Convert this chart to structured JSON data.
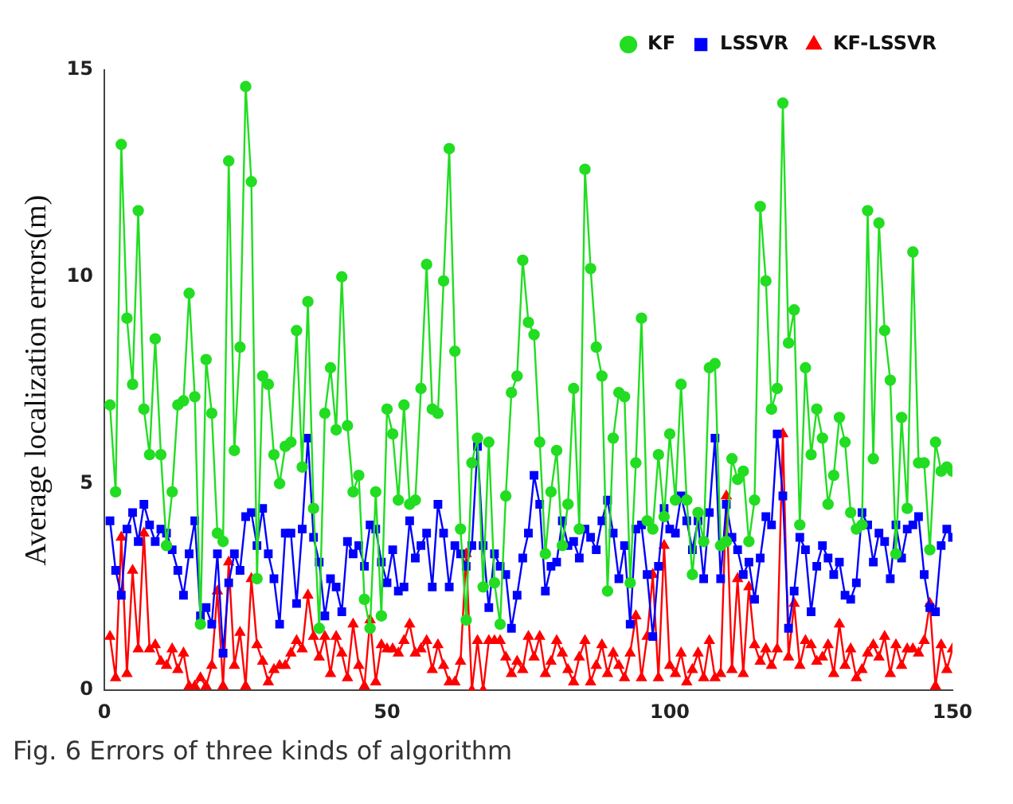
{
  "chart_data": {
    "type": "line",
    "ylabel": "Average localization errors(m)",
    "annotations": [
      "Fig. 6 Errors of three kinds of algorithm"
    ],
    "x": [
      1,
      2,
      3,
      4,
      5,
      6,
      7,
      8,
      9,
      10,
      11,
      12,
      13,
      14,
      15,
      16,
      17,
      18,
      19,
      20,
      21,
      22,
      23,
      24,
      25,
      26,
      27,
      28,
      29,
      30,
      31,
      32,
      33,
      34,
      35,
      36,
      37,
      38,
      39,
      40,
      41,
      42,
      43,
      44,
      45,
      46,
      47,
      48,
      49,
      50,
      51,
      52,
      53,
      54,
      55,
      56,
      57,
      58,
      59,
      60,
      61,
      62,
      63,
      64,
      65,
      66,
      67,
      68,
      69,
      70,
      71,
      72,
      73,
      74,
      75,
      76,
      77,
      78,
      79,
      80,
      81,
      82,
      83,
      84,
      85,
      86,
      87,
      88,
      89,
      90,
      91,
      92,
      93,
      94,
      95,
      96,
      97,
      98,
      99,
      100,
      101,
      102,
      103,
      104,
      105,
      106,
      107,
      108,
      109,
      110,
      111,
      112,
      113,
      114,
      115,
      116,
      117,
      118,
      119,
      120,
      121,
      122,
      123,
      124,
      125,
      126,
      127,
      128,
      129,
      130,
      131,
      132,
      133,
      134,
      135,
      136,
      137,
      138,
      139,
      140,
      141,
      142,
      143,
      144,
      145,
      146,
      147,
      148,
      149,
      150
    ],
    "series": [
      {
        "name": "KF",
        "color": "#22dd22",
        "marker": "circle",
        "values": [
          6.9,
          4.8,
          13.2,
          9.0,
          7.4,
          11.6,
          6.8,
          5.7,
          8.5,
          5.7,
          3.5,
          4.8,
          6.9,
          7.0,
          9.6,
          7.1,
          1.6,
          8.0,
          6.7,
          3.8,
          3.6,
          12.8,
          5.8,
          8.3,
          14.6,
          12.3,
          2.7,
          7.6,
          7.4,
          5.7,
          5.0,
          5.9,
          6.0,
          8.7,
          5.4,
          9.4,
          4.4,
          1.5,
          6.7,
          7.8,
          6.3,
          10.0,
          6.4,
          4.8,
          5.2,
          2.2,
          1.5,
          4.8,
          1.8,
          6.8,
          6.2,
          4.6,
          6.9,
          4.5,
          4.6,
          7.3,
          10.3,
          6.8,
          6.7,
          9.9,
          13.1,
          8.2,
          3.9,
          1.7,
          5.5,
          6.1,
          2.5,
          6.0,
          2.6,
          1.6,
          4.7,
          7.2,
          7.6,
          10.4,
          8.9,
          8.6,
          6.0,
          3.3,
          4.8,
          5.8,
          3.5,
          4.5,
          7.3,
          3.9,
          12.6,
          10.2,
          8.3,
          7.6,
          2.4,
          6.1,
          7.2,
          7.1,
          2.6,
          5.5,
          9.0,
          4.1,
          3.9,
          5.7,
          4.2,
          6.2,
          4.6,
          7.4,
          4.6,
          2.8,
          4.3,
          3.6,
          7.8,
          7.9,
          3.5,
          3.6,
          5.6,
          5.1,
          5.3,
          3.6,
          4.6,
          11.7,
          9.9,
          6.8,
          7.3,
          14.2,
          8.4,
          9.2,
          4.0,
          7.8,
          5.7,
          6.8,
          6.1,
          4.5,
          5.2,
          6.6,
          6.0,
          4.3,
          3.9,
          4.0,
          11.6,
          5.6,
          11.3,
          8.7,
          7.5,
          3.3,
          6.6,
          4.4,
          10.6,
          5.5,
          5.5,
          3.4,
          6.0,
          5.3,
          5.4,
          5.3
        ]
      },
      {
        "name": "LSSVR",
        "color": "#0000ff",
        "marker": "square",
        "values": [
          4.1,
          2.9,
          2.3,
          3.9,
          4.3,
          3.6,
          4.5,
          4.0,
          3.6,
          3.9,
          3.8,
          3.4,
          2.9,
          2.3,
          3.3,
          4.1,
          1.8,
          2.0,
          1.6,
          3.3,
          0.9,
          2.6,
          3.3,
          2.9,
          4.2,
          4.3,
          3.5,
          4.4,
          3.3,
          2.7,
          1.6,
          3.8,
          3.8,
          2.1,
          3.9,
          6.1,
          3.7,
          3.1,
          1.8,
          2.7,
          2.5,
          1.9,
          3.6,
          3.3,
          3.5,
          3.0,
          4.0,
          3.9,
          3.1,
          2.6,
          3.4,
          2.4,
          2.5,
          4.1,
          3.2,
          3.5,
          3.8,
          2.5,
          4.5,
          3.8,
          2.5,
          3.5,
          3.3,
          3.0,
          3.5,
          5.9,
          3.5,
          2.0,
          3.3,
          3.0,
          2.8,
          1.5,
          2.3,
          3.2,
          3.8,
          5.2,
          4.5,
          2.4,
          3.0,
          3.1,
          4.1,
          3.5,
          3.6,
          3.2,
          3.9,
          3.7,
          3.4,
          4.1,
          4.6,
          3.8,
          2.7,
          3.5,
          1.6,
          3.9,
          4.0,
          2.8,
          1.3,
          3.0,
          4.4,
          3.9,
          3.8,
          4.7,
          4.1,
          3.4,
          4.1,
          2.7,
          4.3,
          6.1,
          2.7,
          4.5,
          3.7,
          3.4,
          2.8,
          3.1,
          2.2,
          3.2,
          4.2,
          4.0,
          6.2,
          4.7,
          1.5,
          2.4,
          3.7,
          3.4,
          1.9,
          3.0,
          3.5,
          3.2,
          2.8,
          3.1,
          2.3,
          2.2,
          2.6,
          4.3,
          4.0,
          3.1,
          3.8,
          3.6,
          2.7,
          4.0,
          3.2,
          3.9,
          4.0,
          4.2,
          2.8,
          2.0,
          1.9,
          3.5,
          3.9,
          3.7
        ]
      },
      {
        "name": "KF-LSSVR",
        "color": "#ff0000",
        "marker": "triangle",
        "values": [
          1.3,
          0.3,
          3.7,
          0.4,
          2.9,
          1.0,
          3.8,
          1.0,
          1.1,
          0.7,
          0.6,
          1.0,
          0.5,
          0.9,
          0.1,
          0.1,
          0.3,
          0.1,
          0.6,
          2.4,
          0.1,
          3.1,
          0.6,
          1.4,
          0.1,
          2.7,
          1.1,
          0.7,
          0.2,
          0.5,
          0.6,
          0.6,
          0.9,
          1.2,
          1.0,
          2.3,
          1.3,
          0.8,
          1.3,
          0.4,
          1.3,
          0.9,
          0.3,
          1.6,
          0.6,
          0.1,
          1.7,
          0.2,
          1.1,
          1.0,
          1.0,
          0.9,
          1.2,
          1.6,
          0.9,
          1.0,
          1.2,
          0.5,
          1.1,
          0.6,
          0.2,
          0.2,
          0.7,
          3.3,
          0.0,
          1.2,
          0.0,
          1.2,
          1.2,
          1.2,
          0.8,
          0.4,
          0.7,
          0.5,
          1.3,
          0.8,
          1.3,
          0.4,
          0.7,
          1.2,
          0.9,
          0.5,
          0.2,
          0.8,
          1.2,
          0.2,
          0.6,
          1.1,
          0.4,
          0.9,
          0.6,
          0.3,
          0.9,
          1.8,
          0.3,
          1.3,
          2.8,
          0.3,
          3.5,
          0.6,
          0.4,
          0.9,
          0.2,
          0.5,
          0.9,
          0.3,
          1.2,
          0.3,
          0.4,
          4.7,
          0.5,
          2.7,
          0.4,
          2.5,
          1.1,
          0.7,
          1.0,
          0.6,
          1.0,
          6.2,
          0.8,
          2.1,
          0.6,
          1.2,
          1.1,
          0.7,
          0.8,
          1.1,
          0.4,
          1.6,
          0.6,
          1.0,
          0.3,
          0.5,
          0.9,
          1.1,
          0.8,
          1.3,
          0.4,
          1.1,
          0.6,
          1.0,
          1.0,
          0.9,
          1.2,
          2.1,
          0.1,
          1.1,
          0.5,
          1.0
        ]
      }
    ],
    "xlim": [
      0,
      150
    ],
    "xticks": [
      0,
      50,
      100,
      150
    ],
    "ylim": [
      0,
      15
    ],
    "yticks": [
      0,
      5,
      10,
      15
    ],
    "grid": false,
    "legend": "top right"
  }
}
